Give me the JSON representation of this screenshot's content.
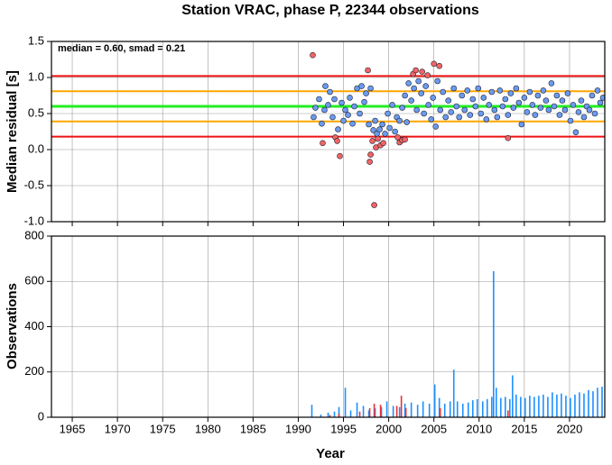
{
  "chart_data": [
    {
      "type": "scatter",
      "title": "Station VRAC, phase P, 22344 observations",
      "annotation": "median = 0.60, smad = 0.21",
      "ylabel": "Median residual [s]",
      "xlim": [
        1962.7,
        2023.9
      ],
      "ylim": [
        -1.0,
        1.5
      ],
      "xticks": [
        1965,
        1970,
        1975,
        1980,
        1985,
        1990,
        1995,
        2000,
        2005,
        2010,
        2015,
        2020
      ],
      "yticks": [
        {
          "value": -1.0,
          "label": "-1.0"
        },
        -0.5,
        {
          "value": 0.0,
          "label": "0.0"
        },
        0.5,
        {
          "value": 1.0,
          "label": "1.0"
        },
        1.5
      ],
      "grid": true,
      "reference_lines": [
        {
          "value": 1.02,
          "color": "#ee1111"
        },
        {
          "value": 0.81,
          "color": "#ffa500"
        },
        {
          "value": 0.6,
          "color": "#22ee22"
        },
        {
          "value": 0.39,
          "color": "#ffa500"
        },
        {
          "value": 0.18,
          "color": "#ee1111"
        }
      ],
      "series": [
        {
          "color": "#6a9bef",
          "x": [
            1991.7,
            1991.9,
            1992.3,
            1992.6,
            1992.9,
            1993.0,
            1993.3,
            1993.5,
            1993.8,
            1994.0,
            1994.4,
            1994.8,
            1995.0,
            1995.2,
            1995.5,
            1995.7,
            1996.0,
            1996.2,
            1996.5,
            1996.8,
            1997.0,
            1997.3,
            1997.5,
            1997.8,
            1998.0,
            1998.3,
            1998.5,
            1998.7,
            1999.0,
            1999.3,
            1999.6,
            1999.9,
            2000.1,
            2000.4,
            2000.7,
            2000.9,
            2001.2,
            2001.5,
            2001.8,
            2002.0,
            2002.2,
            2002.5,
            2002.8,
            2003.1,
            2003.3,
            2003.6,
            2003.9,
            2004.1,
            2004.4,
            2004.7,
            2004.9,
            2005.2,
            2005.4,
            2005.7,
            2006.0,
            2006.3,
            2006.6,
            2006.9,
            2007.2,
            2007.5,
            2007.8,
            2008.1,
            2008.4,
            2008.7,
            2009.0,
            2009.3,
            2009.6,
            2009.9,
            2010.2,
            2010.5,
            2010.8,
            2011.1,
            2011.4,
            2011.7,
            2012.0,
            2012.3,
            2012.6,
            2012.9,
            2013.2,
            2013.5,
            2013.8,
            2014.1,
            2014.4,
            2014.7,
            2015.0,
            2015.3,
            2015.6,
            2015.9,
            2016.2,
            2016.5,
            2016.8,
            2017.1,
            2017.4,
            2017.7,
            2018.0,
            2018.3,
            2018.6,
            2018.9,
            2019.2,
            2019.5,
            2019.8,
            2020.1,
            2020.4,
            2020.7,
            2021.0,
            2021.3,
            2021.6,
            2021.9,
            2022.2,
            2022.5,
            2022.8,
            2023.1,
            2023.4,
            2023.7
          ],
          "values": [
            0.45,
            0.58,
            0.7,
            0.36,
            0.55,
            0.88,
            0.62,
            0.8,
            0.45,
            0.7,
            0.28,
            0.65,
            0.4,
            0.55,
            0.48,
            0.72,
            0.36,
            0.6,
            0.85,
            0.5,
            0.88,
            0.66,
            0.78,
            0.35,
            0.85,
            0.27,
            0.4,
            0.22,
            0.28,
            0.35,
            0.22,
            0.5,
            0.3,
            0.62,
            0.25,
            0.45,
            0.4,
            0.58,
            0.75,
            0.38,
            0.92,
            0.68,
            0.85,
            0.55,
            0.95,
            0.78,
            0.5,
            0.88,
            0.62,
            0.42,
            0.72,
            0.32,
            0.95,
            0.55,
            0.8,
            0.45,
            0.68,
            0.52,
            0.85,
            0.6,
            0.45,
            0.75,
            0.55,
            0.82,
            0.48,
            0.7,
            0.6,
            0.85,
            0.5,
            0.72,
            0.42,
            0.62,
            0.8,
            0.55,
            0.45,
            0.82,
            0.6,
            0.7,
            0.48,
            0.78,
            0.58,
            0.85,
            0.65,
            0.35,
            0.72,
            0.52,
            0.8,
            0.62,
            0.48,
            0.75,
            0.58,
            0.82,
            0.68,
            0.55,
            0.92,
            0.6,
            0.75,
            0.48,
            0.68,
            0.55,
            0.78,
            0.4,
            0.62,
            0.24,
            0.52,
            0.68,
            0.45,
            0.6,
            0.55,
            0.75,
            0.5,
            0.82,
            0.65,
            0.72
          ]
        },
        {
          "color": "#f26464",
          "x": [
            1991.6,
            1992.7,
            1994.1,
            1994.6,
            1994.3,
            1997.7,
            1997.9,
            1998.0,
            1998.2,
            1998.4,
            1998.6,
            1998.8,
            1999.1,
            1999.4,
            2001.2,
            2001.5,
            2001.0,
            2002.7,
            2003.0,
            2004.3,
            2005.0,
            2005.6,
            2013.2,
            2003.7,
            2001.8
          ],
          "values": [
            1.31,
            0.09,
            0.17,
            -0.09,
            0.12,
            1.1,
            -0.17,
            -0.07,
            0.12,
            -0.77,
            0.03,
            0.15,
            0.06,
            0.09,
            0.1,
            0.13,
            0.17,
            1.05,
            1.1,
            1.03,
            1.19,
            1.16,
            0.16,
            1.08,
            0.14
          ]
        }
      ]
    },
    {
      "type": "bar",
      "xlabel": "Year",
      "ylabel": "Observations",
      "xlim": [
        1962.7,
        2023.9
      ],
      "ylim": [
        0,
        800
      ],
      "xticks": [
        1965,
        1970,
        1975,
        1980,
        1985,
        1990,
        1995,
        2000,
        2005,
        2010,
        2015,
        2020
      ],
      "yticks": [
        0,
        200,
        400,
        600,
        800
      ],
      "grid": true,
      "series": [
        {
          "color": "#1e90ff",
          "x": [
            1991.5,
            1992.5,
            1993.3,
            1994.0,
            1994.5,
            1995.2,
            1995.8,
            1996.5,
            1997.2,
            1997.8,
            1998.5,
            1999.2,
            1999.8,
            2000.5,
            2001.2,
            2001.8,
            2002.5,
            2003.2,
            2003.8,
            2004.5,
            2005.1,
            2005.6,
            2006.2,
            2006.8,
            2007.2,
            2007.6,
            2008.2,
            2008.8,
            2009.3,
            2009.8,
            2010.4,
            2010.9,
            2011.4,
            2011.6,
            2011.9,
            2012.4,
            2012.9,
            2013.4,
            2013.7,
            2014.1,
            2014.6,
            2015.1,
            2015.6,
            2016.1,
            2016.6,
            2017.1,
            2017.6,
            2018.1,
            2018.6,
            2019.1,
            2019.6,
            2020.1,
            2020.6,
            2021.1,
            2021.6,
            2022.1,
            2022.6,
            2023.1,
            2023.6
          ],
          "values": [
            55,
            12,
            20,
            25,
            45,
            130,
            30,
            65,
            50,
            30,
            40,
            45,
            70,
            50,
            45,
            60,
            65,
            55,
            70,
            60,
            145,
            85,
            60,
            70,
            210,
            70,
            60,
            65,
            75,
            80,
            70,
            80,
            90,
            645,
            130,
            85,
            90,
            80,
            185,
            100,
            90,
            85,
            95,
            90,
            95,
            100,
            90,
            110,
            100,
            105,
            95,
            85,
            100,
            110,
            105,
            120,
            115,
            130,
            135
          ]
        },
        {
          "color": "#e8303a",
          "x": [
            1993.5,
            1994.5,
            1996.8,
            1997.9,
            1998.4,
            1999.1,
            2000.9,
            2001.4,
            2001.9,
            2005.7,
            2013.2
          ],
          "values": [
            10,
            15,
            25,
            40,
            60,
            55,
            50,
            95,
            40,
            40,
            30
          ]
        }
      ]
    }
  ]
}
